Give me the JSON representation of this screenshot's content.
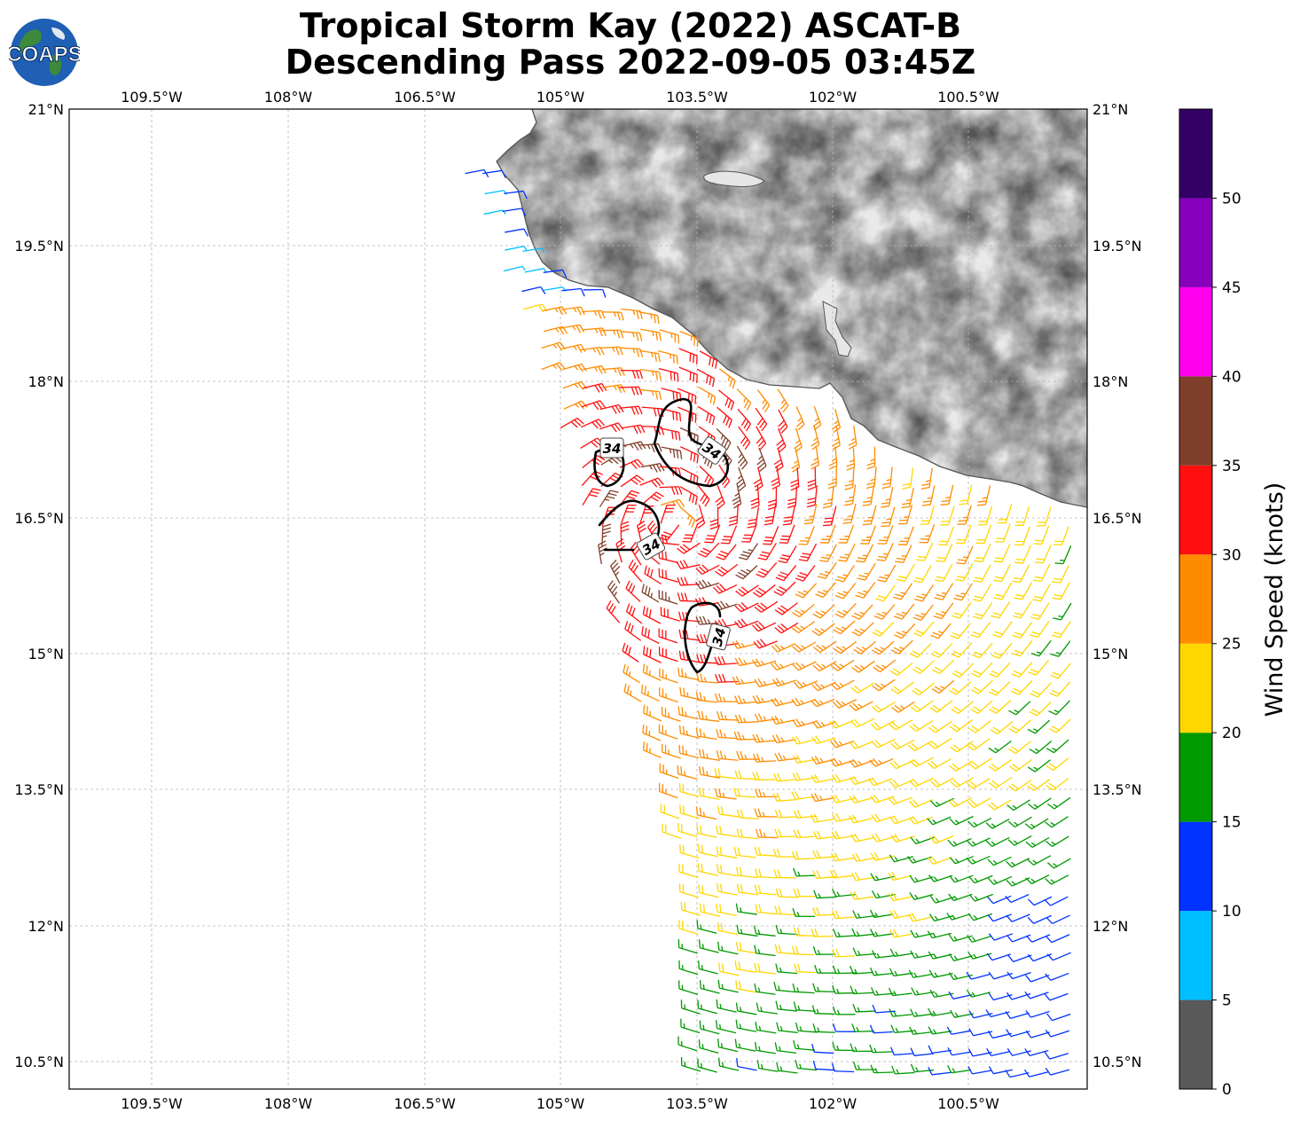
{
  "title": {
    "line1": "Tropical Storm Kay (2022) ASCAT-B",
    "line2": "Descending Pass 2022-09-05 03:45Z"
  },
  "logo": {
    "text": "COAPS",
    "ocean_color": "#1f5fb4",
    "land_color": "#3d8a3a"
  },
  "map": {
    "lon_labels": [
      "109.5°W",
      "108°W",
      "106.5°W",
      "105°W",
      "103.5°W",
      "102°W",
      "100.5°W"
    ],
    "lat_labels": [
      "21°N",
      "19.5°N",
      "18°N",
      "16.5°N",
      "15°N",
      "13.5°N",
      "12°N",
      "10.5°N"
    ],
    "contour_label": "34",
    "contour_value_kt": 34,
    "land_shading": "grayscale topography",
    "gridlines": true
  },
  "colorbar": {
    "label": "Wind Speed (knots)",
    "ticks": [
      "0",
      "5",
      "10",
      "15",
      "20",
      "25",
      "30",
      "35",
      "40",
      "45",
      "50"
    ],
    "bins": [
      {
        "from": 0,
        "to": 5,
        "color": "#595959"
      },
      {
        "from": 5,
        "to": 10,
        "color": "#00bfff"
      },
      {
        "from": 10,
        "to": 15,
        "color": "#0033ff"
      },
      {
        "from": 15,
        "to": 20,
        "color": "#009900"
      },
      {
        "from": 20,
        "to": 25,
        "color": "#ffd700"
      },
      {
        "from": 25,
        "to": 30,
        "color": "#ff8c00"
      },
      {
        "from": 30,
        "to": 35,
        "color": "#ff0f0f"
      },
      {
        "from": 35,
        "to": 40,
        "color": "#7f3f2a"
      },
      {
        "from": 40,
        "to": 45,
        "color": "#ff00ee"
      },
      {
        "from": 45,
        "to": 50,
        "color": "#8800bb"
      },
      {
        "from": 50,
        "to": 55,
        "color": "#330066"
      }
    ]
  }
}
